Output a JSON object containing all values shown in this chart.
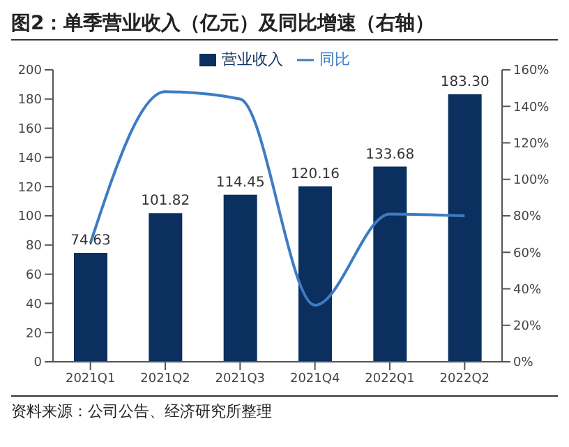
{
  "chart_data": {
    "type": "bar",
    "title": "图2：单季营业收入（亿元）及同比增速（右轴）",
    "categories": [
      "2021Q1",
      "2021Q2",
      "2021Q3",
      "2021Q4",
      "2022Q1",
      "2022Q2"
    ],
    "series": [
      {
        "name": "营业收入",
        "color": "#0b2f5e",
        "values": [
          74.63,
          101.82,
          114.45,
          120.16,
          133.68,
          183.3
        ],
        "value_labels": [
          "74.63",
          "101.82",
          "114.45",
          "120.16",
          "133.68",
          "183.30"
        ]
      },
      {
        "name": "同比",
        "type": "line",
        "axis": "y2",
        "color": "#3c7cc4",
        "values": [
          65,
          148,
          144,
          31,
          81,
          80
        ]
      }
    ],
    "ylim": [
      0,
      200
    ],
    "yticks": [
      0,
      20,
      40,
      60,
      80,
      100,
      120,
      140,
      160,
      180,
      200
    ],
    "y2lim": [
      0,
      160
    ],
    "y2ticks": [
      {
        "value": 0,
        "label": "0%"
      },
      {
        "value": 20,
        "label": "20%"
      },
      {
        "value": 40,
        "label": "40%"
      },
      {
        "value": 60,
        "label": "60%"
      },
      {
        "value": 80,
        "label": "80%"
      },
      {
        "value": 100,
        "label": "100%"
      },
      {
        "value": 120,
        "label": "120%"
      },
      {
        "value": 140,
        "label": "140%"
      },
      {
        "value": 160,
        "label": "160%"
      }
    ],
    "legend": "top",
    "marker": "none",
    "line_style": "solid",
    "annotations": [
      "资料来源：公司公告、经济研究所整理"
    ]
  }
}
